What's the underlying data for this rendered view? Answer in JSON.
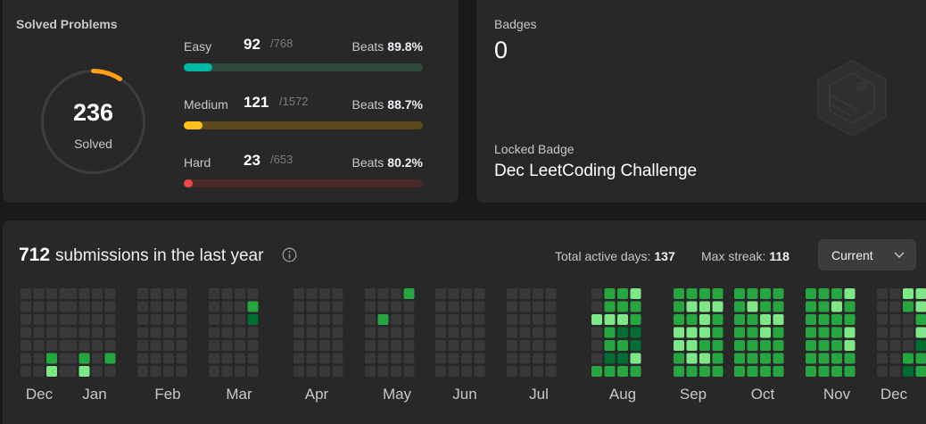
{
  "solved": {
    "title": "Solved Problems",
    "total": "236",
    "total_label": "Solved",
    "ring_color": "#ffa116",
    "difficulties": [
      {
        "name": "Easy",
        "solved": "92",
        "total": "/768",
        "beats_label": "Beats",
        "beats": "89.8%",
        "fraction": 0.12,
        "color": "#00b8a3",
        "track": "#2e4a3a"
      },
      {
        "name": "Medium",
        "solved": "121",
        "total": "/1572",
        "beats_label": "Beats",
        "beats": "88.7%",
        "fraction": 0.077,
        "color": "#ffc01e",
        "track": "#5a4a1e"
      },
      {
        "name": "Hard",
        "solved": "23",
        "total": "/653",
        "beats_label": "Beats",
        "beats": "80.2%",
        "fraction": 0.035,
        "color": "#ef4743",
        "track": "#4a2929"
      }
    ]
  },
  "badges": {
    "label": "Badges",
    "count": "0",
    "locked_label": "Locked Badge",
    "locked_name": "Dec LeetCoding Challenge",
    "badge_icon": "locked-badge-hexagon"
  },
  "heatmap": {
    "count": "712",
    "title_text": "submissions in the last year",
    "info_icon": "info-icon",
    "active_days_label": "Total active days:",
    "active_days": "137",
    "max_streak_label": "Max streak:",
    "max_streak": "118",
    "select_value": "Current",
    "months": [
      "Dec",
      "Jan",
      "Feb",
      "Mar",
      "Apr",
      "May",
      "Jun",
      "Jul",
      "Aug",
      "Sep",
      "Oct",
      "Nov",
      "Dec"
    ],
    "colors": {
      "0": "#393939",
      "1": "#0e4429",
      "2": "#006d32",
      "3": "#26a641",
      "4": "#7ee787"
    },
    "month_grids": [
      [
        "0000",
        "0000",
        "0000",
        "0000",
        "0000",
        "0030",
        "0040"
      ],
      [
        "0000",
        "0000",
        "0000",
        "0000",
        "0000",
        "0303",
        "0400"
      ],
      [
        "0000",
        "0000",
        "0000",
        "0000",
        "0000",
        "0000",
        "0000"
      ],
      [
        "0000",
        "0003",
        "0002",
        "0000",
        "0000",
        "0000",
        "0000"
      ],
      [
        "0000",
        "0000",
        "0000",
        "0000",
        "0000",
        "0000",
        "0000"
      ],
      [
        "0003",
        "0000",
        "0300",
        "0000",
        "0000",
        "0000",
        "0000"
      ],
      [
        "0000",
        "0000",
        "0000",
        "0000",
        "0000",
        "0000",
        "0000"
      ],
      [
        "0000",
        "0000",
        "0000",
        "0000",
        "0000",
        "0000",
        "0000"
      ],
      [
        "0334",
        "0333",
        "4443",
        "0322",
        "0332",
        "0224",
        "3333"
      ],
      [
        "3333",
        "3444",
        "3343",
        "4443",
        "4433",
        "3443",
        "3333"
      ],
      [
        "3333",
        "3433",
        "3344",
        "3343",
        "3333",
        "3333",
        "3333"
      ],
      [
        "3334",
        "3343",
        "3333",
        "3334",
        "3334",
        "3333",
        "3333"
      ],
      [
        "0044",
        "0034",
        "0003",
        "0004",
        "0002",
        "0033",
        "0023"
      ]
    ]
  }
}
